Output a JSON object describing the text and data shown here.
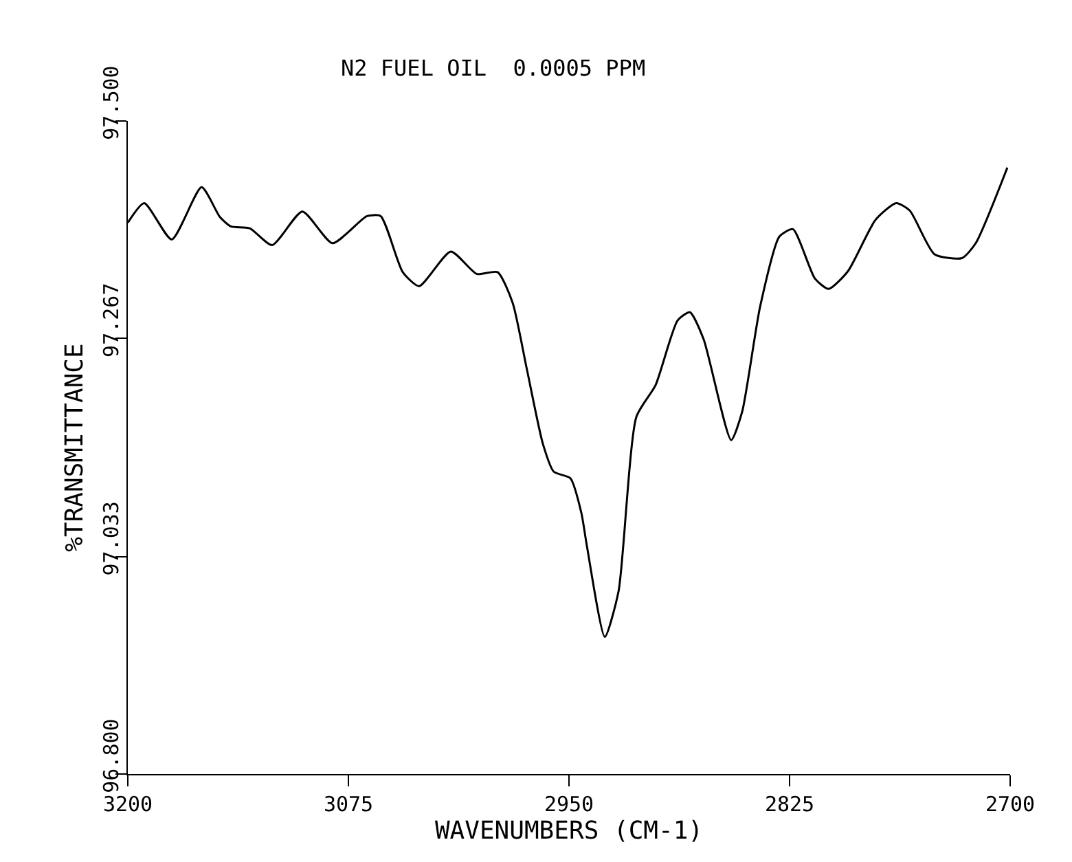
{
  "chart_data": {
    "type": "line",
    "title": "N2 FUEL OIL  0.0005 PPM",
    "xlabel": "WAVENUMBERS (CM-1)",
    "ylabel": "%TRANSMITTANCE",
    "x": [
      3200,
      3190.7,
      3175.1,
      3158.2,
      3147.8,
      3141.6,
      3130.9,
      3118.2,
      3101.1,
      3084.0,
      3064.5,
      3056.7,
      3044.2,
      3034.9,
      3017.0,
      3002.2,
      2990.5,
      2981.9,
      2974.1,
      2964.8,
      2958.6,
      2949.2,
      2943.0,
      2939.9,
      2929.7,
      2921.9,
      2911.8,
      2900.9,
      2888.5,
      2881.5,
      2873.7,
      2858.1,
      2851.9,
      2841.7,
      2830.8,
      2823.1,
      2810.6,
      2802.8,
      2791.9,
      2776.3,
      2764.6,
      2756.9,
      2742.8,
      2727.3,
      2719.5,
      2701.6
    ],
    "series": [
      {
        "color": "#000000",
        "values": [
          97.391,
          97.412,
          97.373,
          97.429,
          97.397,
          97.387,
          97.385,
          97.367,
          97.403,
          97.369,
          97.398,
          97.398,
          97.338,
          97.323,
          97.36,
          97.336,
          97.338,
          97.305,
          97.236,
          97.154,
          97.124,
          97.117,
          97.08,
          97.045,
          96.947,
          96.996,
          97.183,
          97.217,
          97.286,
          97.295,
          97.266,
          97.158,
          97.188,
          97.301,
          97.376,
          97.384,
          97.331,
          97.32,
          97.339,
          97.394,
          97.412,
          97.404,
          97.357,
          97.353,
          97.369,
          97.45
        ]
      }
    ],
    "xlim": [
      3200,
      2700
    ],
    "xticks": [
      3200,
      3075,
      2950,
      2825,
      2700
    ],
    "ylim": [
      96.8,
      97.5
    ],
    "yticks": [
      {
        "value": 96.8,
        "label": "96.800"
      },
      {
        "value": 97.033,
        "label": "97.033"
      },
      {
        "value": 97.267,
        "label": "97.267"
      },
      {
        "value": 97.5,
        "label": "97.500"
      }
    ],
    "marker": "none",
    "line_style": "solid"
  }
}
